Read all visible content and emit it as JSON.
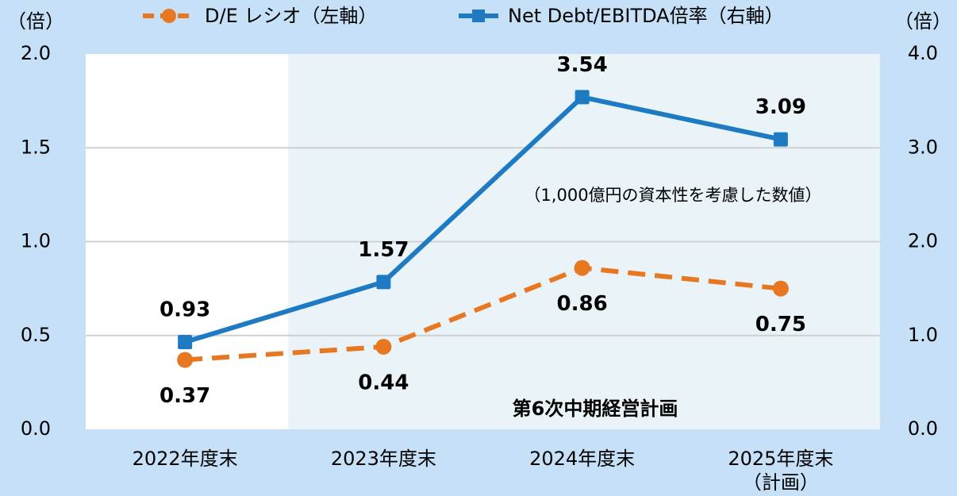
{
  "chart_data": {
    "type": "line",
    "categories": [
      "2022年度末",
      "2023年度末",
      "2024年度末",
      "2025年度末\n（計画）"
    ],
    "series": [
      {
        "name": "D/E レシオ（左軸）",
        "color": "#e87722",
        "axis": "y",
        "values": [
          0.37,
          0.44,
          0.86,
          0.75
        ]
      },
      {
        "name": "Net Debt/EBITDA倍率（右軸）",
        "color": "#1f7ac4",
        "axis": "y2",
        "values": [
          0.93,
          1.57,
          3.54,
          3.09
        ]
      }
    ],
    "ylabel": "（倍）",
    "y2label": "（倍）",
    "ylim": [
      0,
      2
    ],
    "yticks": [
      {
        "value": 0,
        "label": "0.0"
      },
      {
        "value": 0.5,
        "label": "0.5"
      },
      {
        "value": 1,
        "label": "1.0"
      },
      {
        "value": 1.5,
        "label": "1.5"
      },
      {
        "value": 2,
        "label": "2.0"
      }
    ],
    "y2lim": [
      0,
      4
    ],
    "y2ticks": [
      {
        "value": 0,
        "label": "0.0"
      },
      {
        "value": 1,
        "label": "1.0"
      },
      {
        "value": 2,
        "label": "2.0"
      },
      {
        "value": 3,
        "label": "3.0"
      },
      {
        "value": 4,
        "label": "4.0"
      }
    ],
    "annotations": [
      "（1,000億円の資本性を考慮した数値）",
      "第6次中期経営計画"
    ],
    "grid": true
  }
}
